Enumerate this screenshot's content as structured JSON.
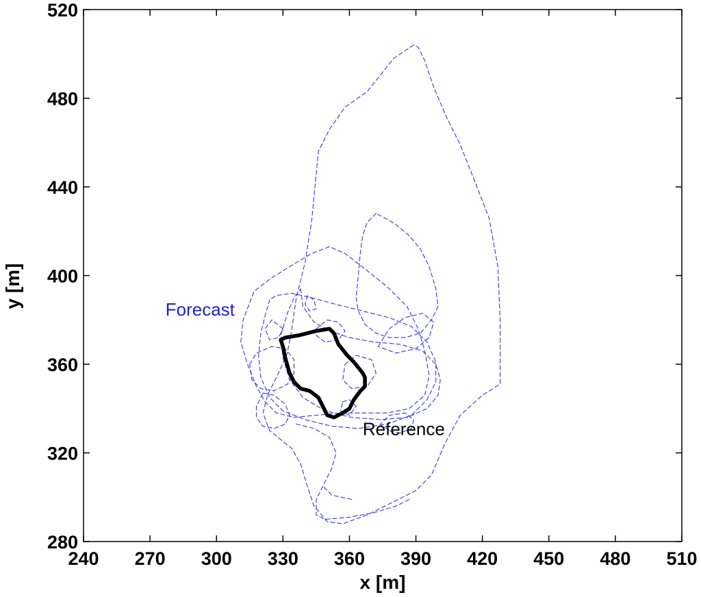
{
  "chart_data": {
    "type": "line",
    "title": "",
    "xlabel": "x [m]",
    "ylabel": "y [m]",
    "xlim": [
      240,
      510
    ],
    "ylim": [
      280,
      520
    ],
    "xticks": [
      "240",
      "270",
      "300",
      "330",
      "360",
      "390",
      "420",
      "450",
      "480",
      "510"
    ],
    "yticks": [
      "280",
      "320",
      "360",
      "400",
      "440",
      "480",
      "520"
    ],
    "grid": false,
    "annotations": [
      {
        "text": "Forecast",
        "x": 277,
        "y": 382,
        "color": "#1f1fdd"
      },
      {
        "text": "Reference",
        "x": 366,
        "y": 328,
        "color": "#000000"
      }
    ],
    "series": [
      {
        "style": "dashed",
        "color": "#3333dd",
        "points": [
          [
            389,
            504
          ],
          [
            380,
            498
          ],
          [
            368,
            483
          ],
          [
            358,
            476
          ],
          [
            351,
            466
          ],
          [
            346,
            456
          ],
          [
            343,
            425
          ],
          [
            340,
            406
          ],
          [
            336,
            390
          ],
          [
            334,
            376
          ],
          [
            332,
            365
          ],
          [
            328,
            356
          ],
          [
            323,
            346
          ],
          [
            321,
            338
          ],
          [
            324,
            330
          ],
          [
            334,
            322
          ],
          [
            338,
            315
          ],
          [
            341,
            305
          ],
          [
            344,
            296
          ],
          [
            350,
            289
          ],
          [
            357,
            288
          ],
          [
            368,
            292
          ],
          [
            380,
            298
          ],
          [
            390,
            303
          ],
          [
            397,
            310
          ],
          [
            403,
            324
          ],
          [
            410,
            337
          ],
          [
            420,
            346
          ],
          [
            428,
            351
          ],
          [
            428,
            380
          ],
          [
            427,
            404
          ],
          [
            423,
            426
          ],
          [
            416,
            444
          ],
          [
            410,
            459
          ],
          [
            404,
            471
          ],
          [
            398,
            485
          ],
          [
            394,
            497
          ],
          [
            391,
            503
          ],
          [
            389,
            504
          ]
        ]
      },
      {
        "style": "dashed",
        "color": "#3333dd",
        "points": [
          [
            372,
            428
          ],
          [
            368,
            424
          ],
          [
            366,
            418
          ],
          [
            365,
            411
          ],
          [
            364,
            400
          ],
          [
            363,
            390
          ],
          [
            364,
            384
          ],
          [
            367,
            378
          ],
          [
            372,
            374
          ],
          [
            378,
            372
          ],
          [
            385,
            372
          ],
          [
            392,
            374
          ],
          [
            397,
            380
          ],
          [
            400,
            386
          ],
          [
            399,
            394
          ],
          [
            396,
            404
          ],
          [
            392,
            412
          ],
          [
            387,
            418
          ],
          [
            381,
            423
          ],
          [
            376,
            426
          ],
          [
            372,
            428
          ]
        ]
      },
      {
        "style": "dashed",
        "color": "#3333dd",
        "points": [
          [
            351,
            413
          ],
          [
            343,
            410
          ],
          [
            333,
            404
          ],
          [
            325,
            399
          ],
          [
            317,
            393
          ],
          [
            312,
            380
          ],
          [
            311,
            370
          ],
          [
            314,
            360
          ],
          [
            318,
            350
          ],
          [
            322,
            343
          ],
          [
            327,
            338
          ],
          [
            335,
            336
          ],
          [
            345,
            337
          ],
          [
            356,
            338
          ],
          [
            366,
            338
          ],
          [
            377,
            338
          ],
          [
            387,
            340
          ],
          [
            394,
            346
          ],
          [
            396,
            355
          ],
          [
            394,
            366
          ],
          [
            391,
            376
          ],
          [
            386,
            386
          ],
          [
            377,
            395
          ],
          [
            367,
            403
          ],
          [
            358,
            410
          ],
          [
            351,
            413
          ]
        ]
      },
      {
        "style": "dashed",
        "color": "#3333dd",
        "points": [
          [
            324,
            389
          ],
          [
            322,
            382
          ],
          [
            320,
            374
          ],
          [
            319,
            364
          ],
          [
            320,
            354
          ],
          [
            324,
            345
          ],
          [
            330,
            339
          ],
          [
            340,
            335
          ],
          [
            352,
            332
          ],
          [
            364,
            331
          ],
          [
            377,
            333
          ],
          [
            388,
            337
          ],
          [
            395,
            344
          ],
          [
            399,
            352
          ],
          [
            399,
            361
          ],
          [
            395,
            370
          ],
          [
            388,
            377
          ],
          [
            378,
            381
          ],
          [
            366,
            384
          ],
          [
            354,
            387
          ],
          [
            343,
            390
          ],
          [
            334,
            392
          ],
          [
            327,
            391
          ],
          [
            324,
            389
          ]
        ]
      },
      {
        "style": "dashed",
        "color": "#3333dd",
        "points": [
          [
            338,
            394
          ],
          [
            339,
            386
          ],
          [
            344,
            379
          ],
          [
            351,
            375
          ],
          [
            360,
            372
          ],
          [
            371,
            370
          ],
          [
            383,
            369
          ],
          [
            393,
            366
          ],
          [
            399,
            360
          ],
          [
            401,
            353
          ],
          [
            400,
            346
          ],
          [
            395,
            340
          ],
          [
            386,
            336
          ],
          [
            374,
            335
          ],
          [
            361,
            336
          ],
          [
            349,
            339
          ],
          [
            339,
            345
          ],
          [
            333,
            353
          ],
          [
            330,
            363
          ],
          [
            329,
            373
          ],
          [
            332,
            383
          ],
          [
            335,
            390
          ],
          [
            338,
            394
          ]
        ]
      },
      {
        "style": "dashed",
        "color": "#3333dd",
        "points": [
          [
            315,
            360
          ],
          [
            318,
            365
          ],
          [
            325,
            368
          ],
          [
            331,
            367
          ],
          [
            335,
            362
          ],
          [
            335,
            356
          ],
          [
            332,
            351
          ],
          [
            326,
            348
          ],
          [
            320,
            349
          ],
          [
            316,
            353
          ],
          [
            315,
            360
          ]
        ]
      },
      {
        "style": "dashed",
        "color": "#3333dd",
        "points": [
          [
            321,
            347
          ],
          [
            326,
            346
          ],
          [
            331,
            342
          ],
          [
            333,
            337
          ],
          [
            331,
            333
          ],
          [
            326,
            331
          ],
          [
            321,
            332
          ],
          [
            318,
            336
          ],
          [
            318,
            341
          ],
          [
            321,
            347
          ]
        ]
      },
      {
        "style": "dashed",
        "color": "#3333dd",
        "points": [
          [
            330,
            376
          ],
          [
            325,
            380
          ],
          [
            322,
            376
          ],
          [
            324,
            371
          ],
          [
            328,
            372
          ],
          [
            330,
            376
          ]
        ]
      },
      {
        "style": "dashed",
        "color": "#3333dd",
        "points": [
          [
            345,
            376
          ],
          [
            350,
            380
          ],
          [
            355,
            379
          ],
          [
            358,
            375
          ],
          [
            355,
            371
          ],
          [
            349,
            370
          ],
          [
            345,
            373
          ],
          [
            345,
            376
          ]
        ]
      },
      {
        "style": "dashed",
        "color": "#3333dd",
        "points": [
          [
            341,
            391
          ],
          [
            340,
            387
          ],
          [
            342,
            384
          ],
          [
            345,
            385
          ],
          [
            344,
            389
          ],
          [
            341,
            391
          ]
        ]
      },
      {
        "style": "dashed",
        "color": "#3333dd",
        "points": [
          [
            358,
            360
          ],
          [
            363,
            364
          ],
          [
            370,
            362
          ],
          [
            372,
            356
          ],
          [
            368,
            350
          ],
          [
            361,
            349
          ],
          [
            357,
            353
          ],
          [
            358,
            360
          ]
        ]
      },
      {
        "style": "dashed",
        "color": "#3333dd",
        "points": [
          [
            357,
            343
          ],
          [
            360,
            344
          ],
          [
            363,
            341
          ],
          [
            360,
            337
          ],
          [
            356,
            339
          ],
          [
            357,
            343
          ]
        ]
      },
      {
        "style": "dashed",
        "color": "#3333dd",
        "points": [
          [
            336,
            333
          ],
          [
            344,
            331
          ],
          [
            351,
            327
          ],
          [
            354,
            320
          ],
          [
            352,
            313
          ],
          [
            348,
            305
          ],
          [
            345,
            299
          ],
          [
            345,
            292
          ],
          [
            349,
            290
          ],
          [
            360,
            291
          ],
          [
            371,
            293
          ],
          [
            381,
            296
          ],
          [
            387,
            299
          ]
        ]
      },
      {
        "style": "dashed",
        "color": "#3333dd",
        "points": [
          [
            361,
            299
          ],
          [
            352,
            301
          ],
          [
            348,
            305
          ]
        ]
      },
      {
        "style": "dashed",
        "color": "#3333dd",
        "points": [
          [
            383,
            329
          ],
          [
            378,
            330
          ],
          [
            374,
            333
          ],
          [
            378,
            337
          ],
          [
            385,
            338
          ],
          [
            389,
            335
          ],
          [
            388,
            331
          ],
          [
            383,
            329
          ]
        ]
      },
      {
        "style": "dashed",
        "color": "#3333dd",
        "points": [
          [
            373,
            368
          ],
          [
            378,
            376
          ],
          [
            385,
            381
          ],
          [
            393,
            383
          ],
          [
            398,
            379
          ],
          [
            396,
            372
          ],
          [
            390,
            367
          ],
          [
            381,
            365
          ],
          [
            373,
            368
          ]
        ]
      },
      {
        "style": "solid",
        "color": "#000000",
        "name": "",
        "points": [
          [
            329,
            371
          ],
          [
            331,
            372
          ],
          [
            337,
            373
          ],
          [
            345,
            375
          ],
          [
            351,
            376
          ],
          [
            353,
            374
          ],
          [
            355,
            369
          ],
          [
            359,
            364
          ],
          [
            362,
            361
          ],
          [
            366,
            356
          ],
          [
            367,
            354
          ],
          [
            367,
            350
          ],
          [
            365,
            348
          ],
          [
            362,
            344
          ],
          [
            360,
            340
          ],
          [
            357,
            338
          ],
          [
            353,
            336
          ],
          [
            350,
            337
          ],
          [
            348,
            341
          ],
          [
            346,
            345
          ],
          [
            342,
            348
          ],
          [
            338,
            349
          ],
          [
            335,
            352
          ],
          [
            333,
            356
          ],
          [
            331,
            363
          ],
          [
            330,
            368
          ],
          [
            329,
            371
          ]
        ]
      }
    ]
  }
}
